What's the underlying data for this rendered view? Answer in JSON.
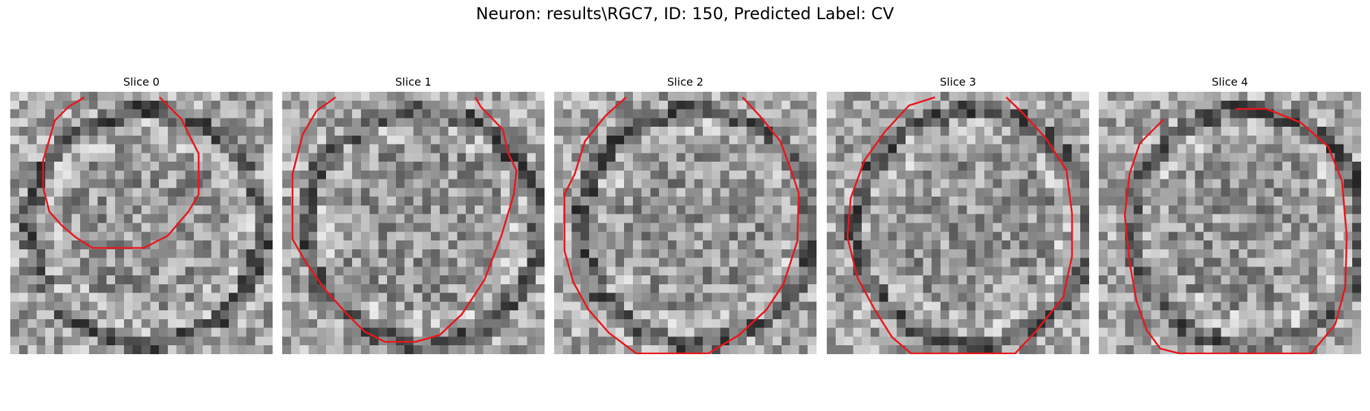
{
  "figure": {
    "title": "Neuron: results\\RGC7, ID: 150, Predicted Label: CV",
    "contour_color": "#e8171c"
  },
  "panels": [
    {
      "title": "Slice 0"
    },
    {
      "title": "Slice 1"
    },
    {
      "title": "Slice 2"
    },
    {
      "title": "Slice 3"
    },
    {
      "title": "Slice 4"
    }
  ]
}
